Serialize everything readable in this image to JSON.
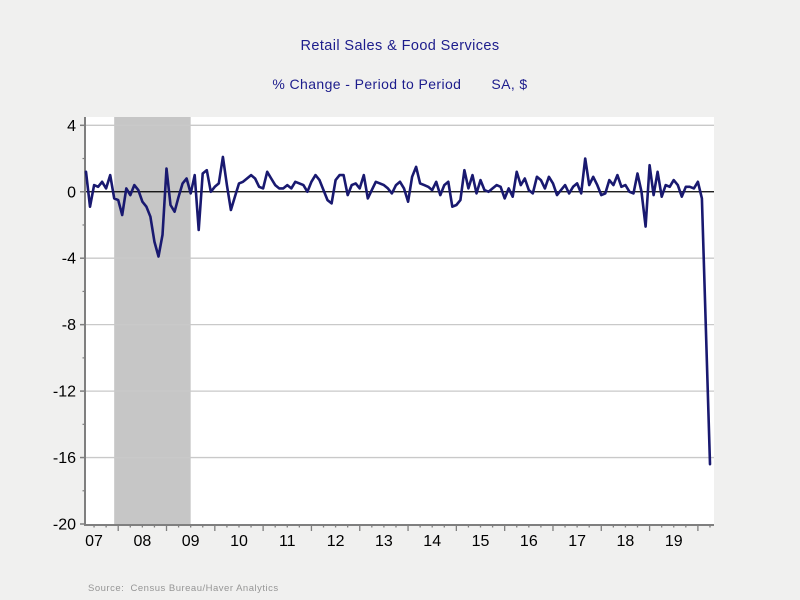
{
  "title": "Retail Sales & Food Services",
  "subtitle": "% Change - Period to Period",
  "units_label": "SA, $",
  "source": "Source:  Census Bureau/Haver Analytics",
  "colors": {
    "page_background": "#f0f0ef",
    "plot_background": "#ffffff",
    "line": "#191970",
    "title_text": "#1c1c8c",
    "recession_band": "#c6c6c6",
    "gridline": "#c9c9c9",
    "axis": "#7f7f7f",
    "zero_line": "#000000",
    "tick_label": "#000000",
    "source_text": "#959595"
  },
  "chart_data": {
    "type": "line",
    "title": "Retail Sales & Food Services",
    "subtitle": "% Change - Period to Period",
    "units": "SA, $",
    "xlabel": "",
    "ylabel": "",
    "frequency": "monthly",
    "start_period": "2007-05",
    "end_period": "2020-04",
    "x_tick_labels": [
      "07",
      "08",
      "09",
      "10",
      "11",
      "12",
      "13",
      "14",
      "15",
      "16",
      "17",
      "18",
      "19"
    ],
    "y_ticks": [
      4,
      0,
      -4,
      -8,
      -12,
      -16,
      -20
    ],
    "y_minor_ticks": [
      2,
      -2,
      -6,
      -10,
      -14,
      -18
    ],
    "ylim": [
      -20,
      4.5
    ],
    "grid": "horizontal",
    "zero_line": true,
    "legend": "none",
    "recession_band": {
      "start": "2007-12",
      "end": "2009-06"
    },
    "series": [
      {
        "name": "Retail Sales & Food Services, % change period to period (SA, $)",
        "values": [
          1.2,
          -0.9,
          0.4,
          0.3,
          0.6,
          0.2,
          1.0,
          -0.4,
          -0.5,
          -1.4,
          0.2,
          -0.2,
          0.4,
          0.1,
          -0.6,
          -0.9,
          -1.5,
          -3.0,
          -3.9,
          -2.6,
          1.4,
          -0.8,
          -1.2,
          -0.3,
          0.5,
          0.8,
          -0.1,
          1.0,
          -2.3,
          1.1,
          1.3,
          0.0,
          0.3,
          0.5,
          2.1,
          0.4,
          -1.1,
          -0.3,
          0.5,
          0.6,
          0.8,
          1.0,
          0.8,
          0.3,
          0.2,
          1.2,
          0.8,
          0.4,
          0.2,
          0.2,
          0.4,
          0.2,
          0.6,
          0.5,
          0.4,
          0.0,
          0.6,
          1.0,
          0.7,
          0.1,
          -0.5,
          -0.7,
          0.7,
          1.0,
          1.0,
          -0.2,
          0.4,
          0.5,
          0.2,
          1.0,
          -0.4,
          0.1,
          0.6,
          0.5,
          0.4,
          0.2,
          -0.1,
          0.4,
          0.6,
          0.2,
          -0.6,
          0.9,
          1.5,
          0.5,
          0.4,
          0.3,
          0.1,
          0.6,
          -0.2,
          0.4,
          0.6,
          -0.9,
          -0.8,
          -0.5,
          1.3,
          0.2,
          1.0,
          -0.1,
          0.7,
          0.1,
          0.0,
          0.2,
          0.4,
          0.3,
          -0.4,
          0.2,
          -0.3,
          1.2,
          0.4,
          0.8,
          0.1,
          -0.1,
          0.9,
          0.7,
          0.2,
          0.9,
          0.5,
          -0.2,
          0.1,
          0.4,
          -0.1,
          0.3,
          0.5,
          -0.1,
          2.0,
          0.4,
          0.9,
          0.4,
          -0.2,
          -0.1,
          0.7,
          0.4,
          1.0,
          0.3,
          0.4,
          0.0,
          -0.1,
          1.1,
          0.0,
          -2.1,
          1.6,
          -0.2,
          1.2,
          -0.3,
          0.4,
          0.3,
          0.7,
          0.4,
          -0.3,
          0.3,
          0.3,
          0.2,
          0.6,
          -0.4,
          -8.3,
          -16.4
        ]
      }
    ]
  }
}
